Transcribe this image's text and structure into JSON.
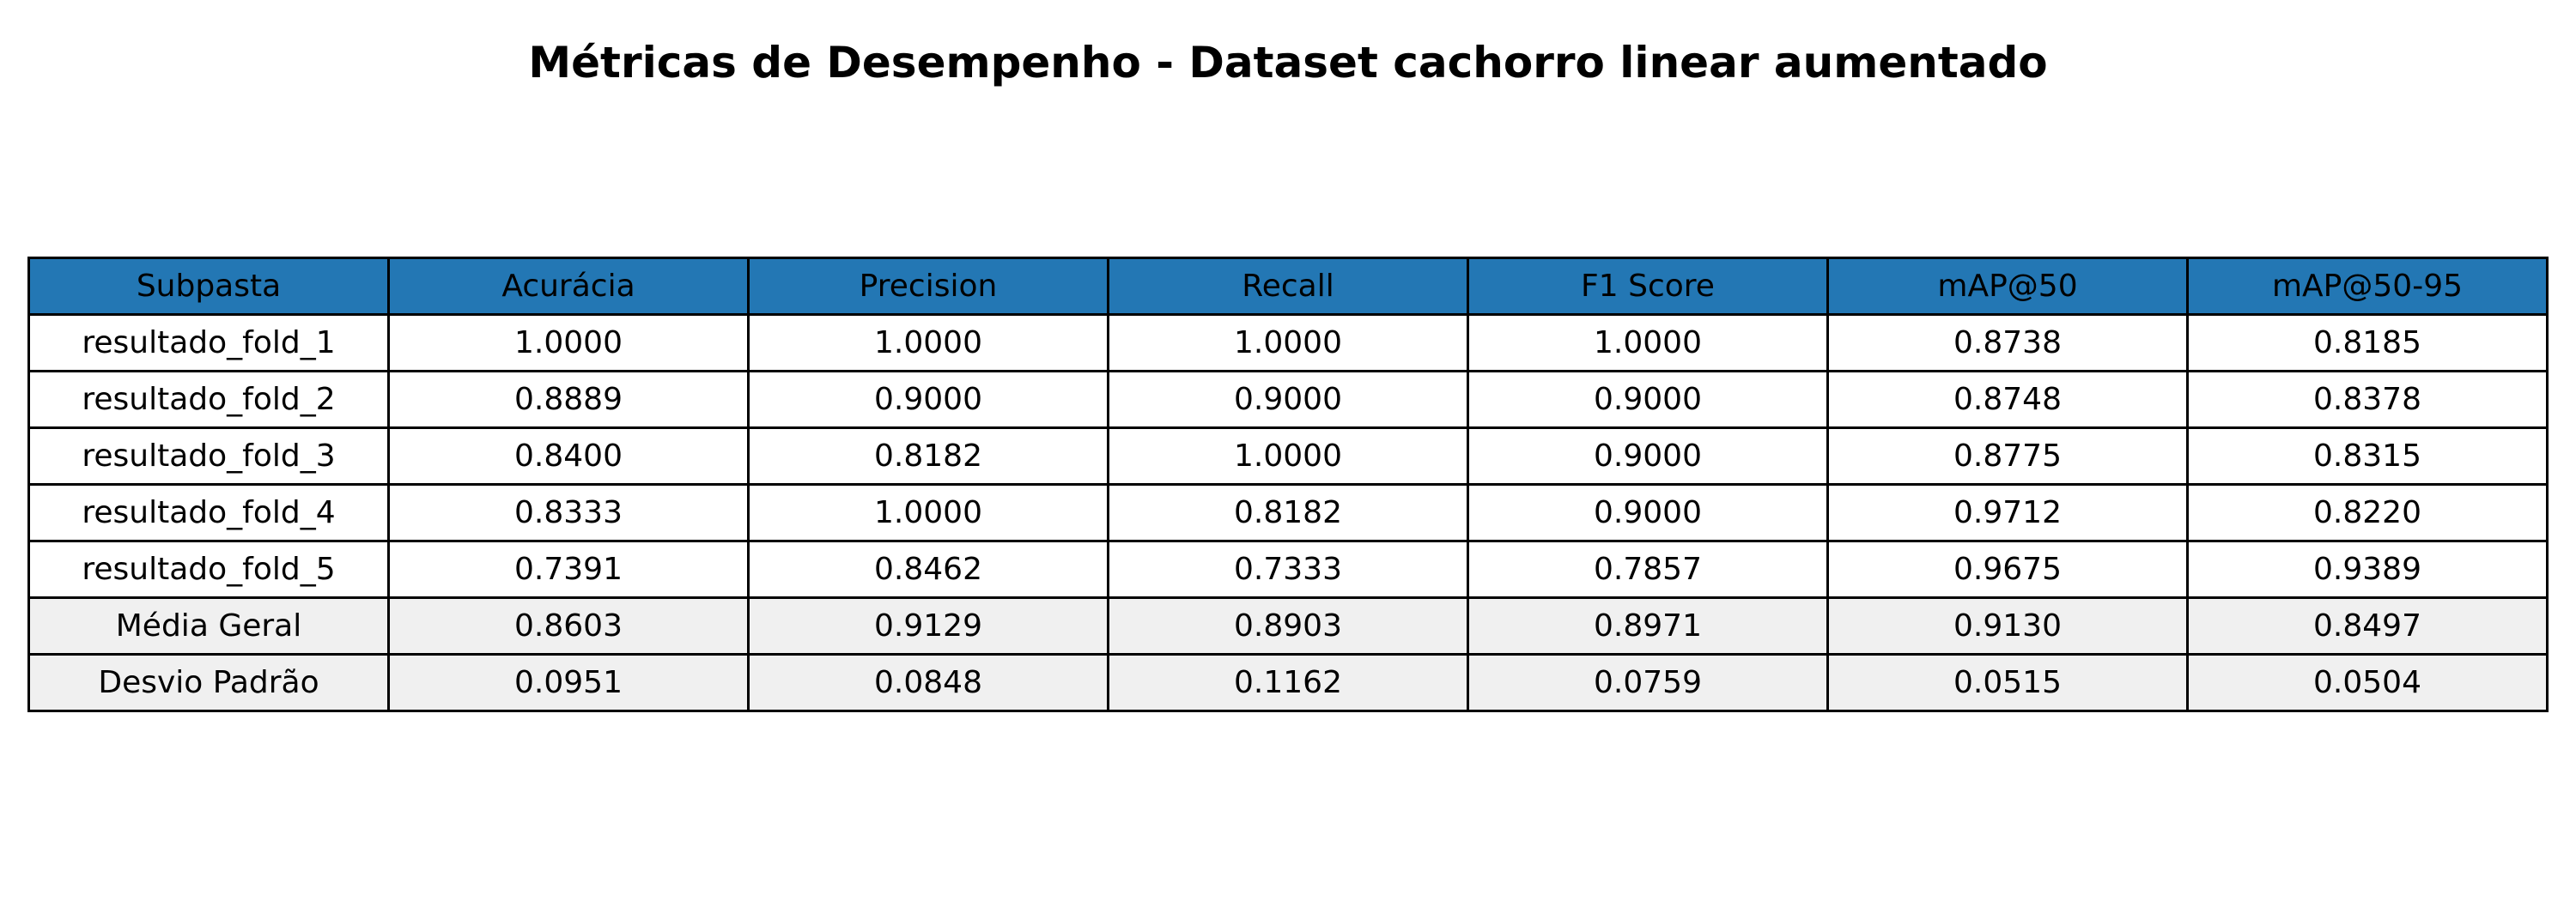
{
  "chart_data": {
    "type": "table",
    "title": "Métricas de Desempenho - Dataset cachorro linear aumentado",
    "header_color": "#2377b4",
    "summary_row_color": "#f0f0f0",
    "columns": [
      "Subpasta",
      "Acurácia",
      "Precision",
      "Recall",
      "F1 Score",
      "mAP@50",
      "mAP@50-95"
    ],
    "rows": [
      [
        "resultado_fold_1",
        "1.0000",
        "1.0000",
        "1.0000",
        "1.0000",
        "0.8738",
        "0.8185"
      ],
      [
        "resultado_fold_2",
        "0.8889",
        "0.9000",
        "0.9000",
        "0.9000",
        "0.8748",
        "0.8378"
      ],
      [
        "resultado_fold_3",
        "0.8400",
        "0.8182",
        "1.0000",
        "0.9000",
        "0.8775",
        "0.8315"
      ],
      [
        "resultado_fold_4",
        "0.8333",
        "1.0000",
        "0.8182",
        "0.9000",
        "0.9712",
        "0.8220"
      ],
      [
        "resultado_fold_5",
        "0.7391",
        "0.8462",
        "0.7333",
        "0.7857",
        "0.9675",
        "0.9389"
      ],
      [
        "Média Geral",
        "0.8603",
        "0.9129",
        "0.8903",
        "0.8971",
        "0.9130",
        "0.8497"
      ],
      [
        "Desvio Padrão",
        "0.0951",
        "0.0848",
        "0.1162",
        "0.0759",
        "0.0515",
        "0.0504"
      ]
    ],
    "summary_row_labels": [
      "Média Geral",
      "Desvio Padrão"
    ]
  }
}
